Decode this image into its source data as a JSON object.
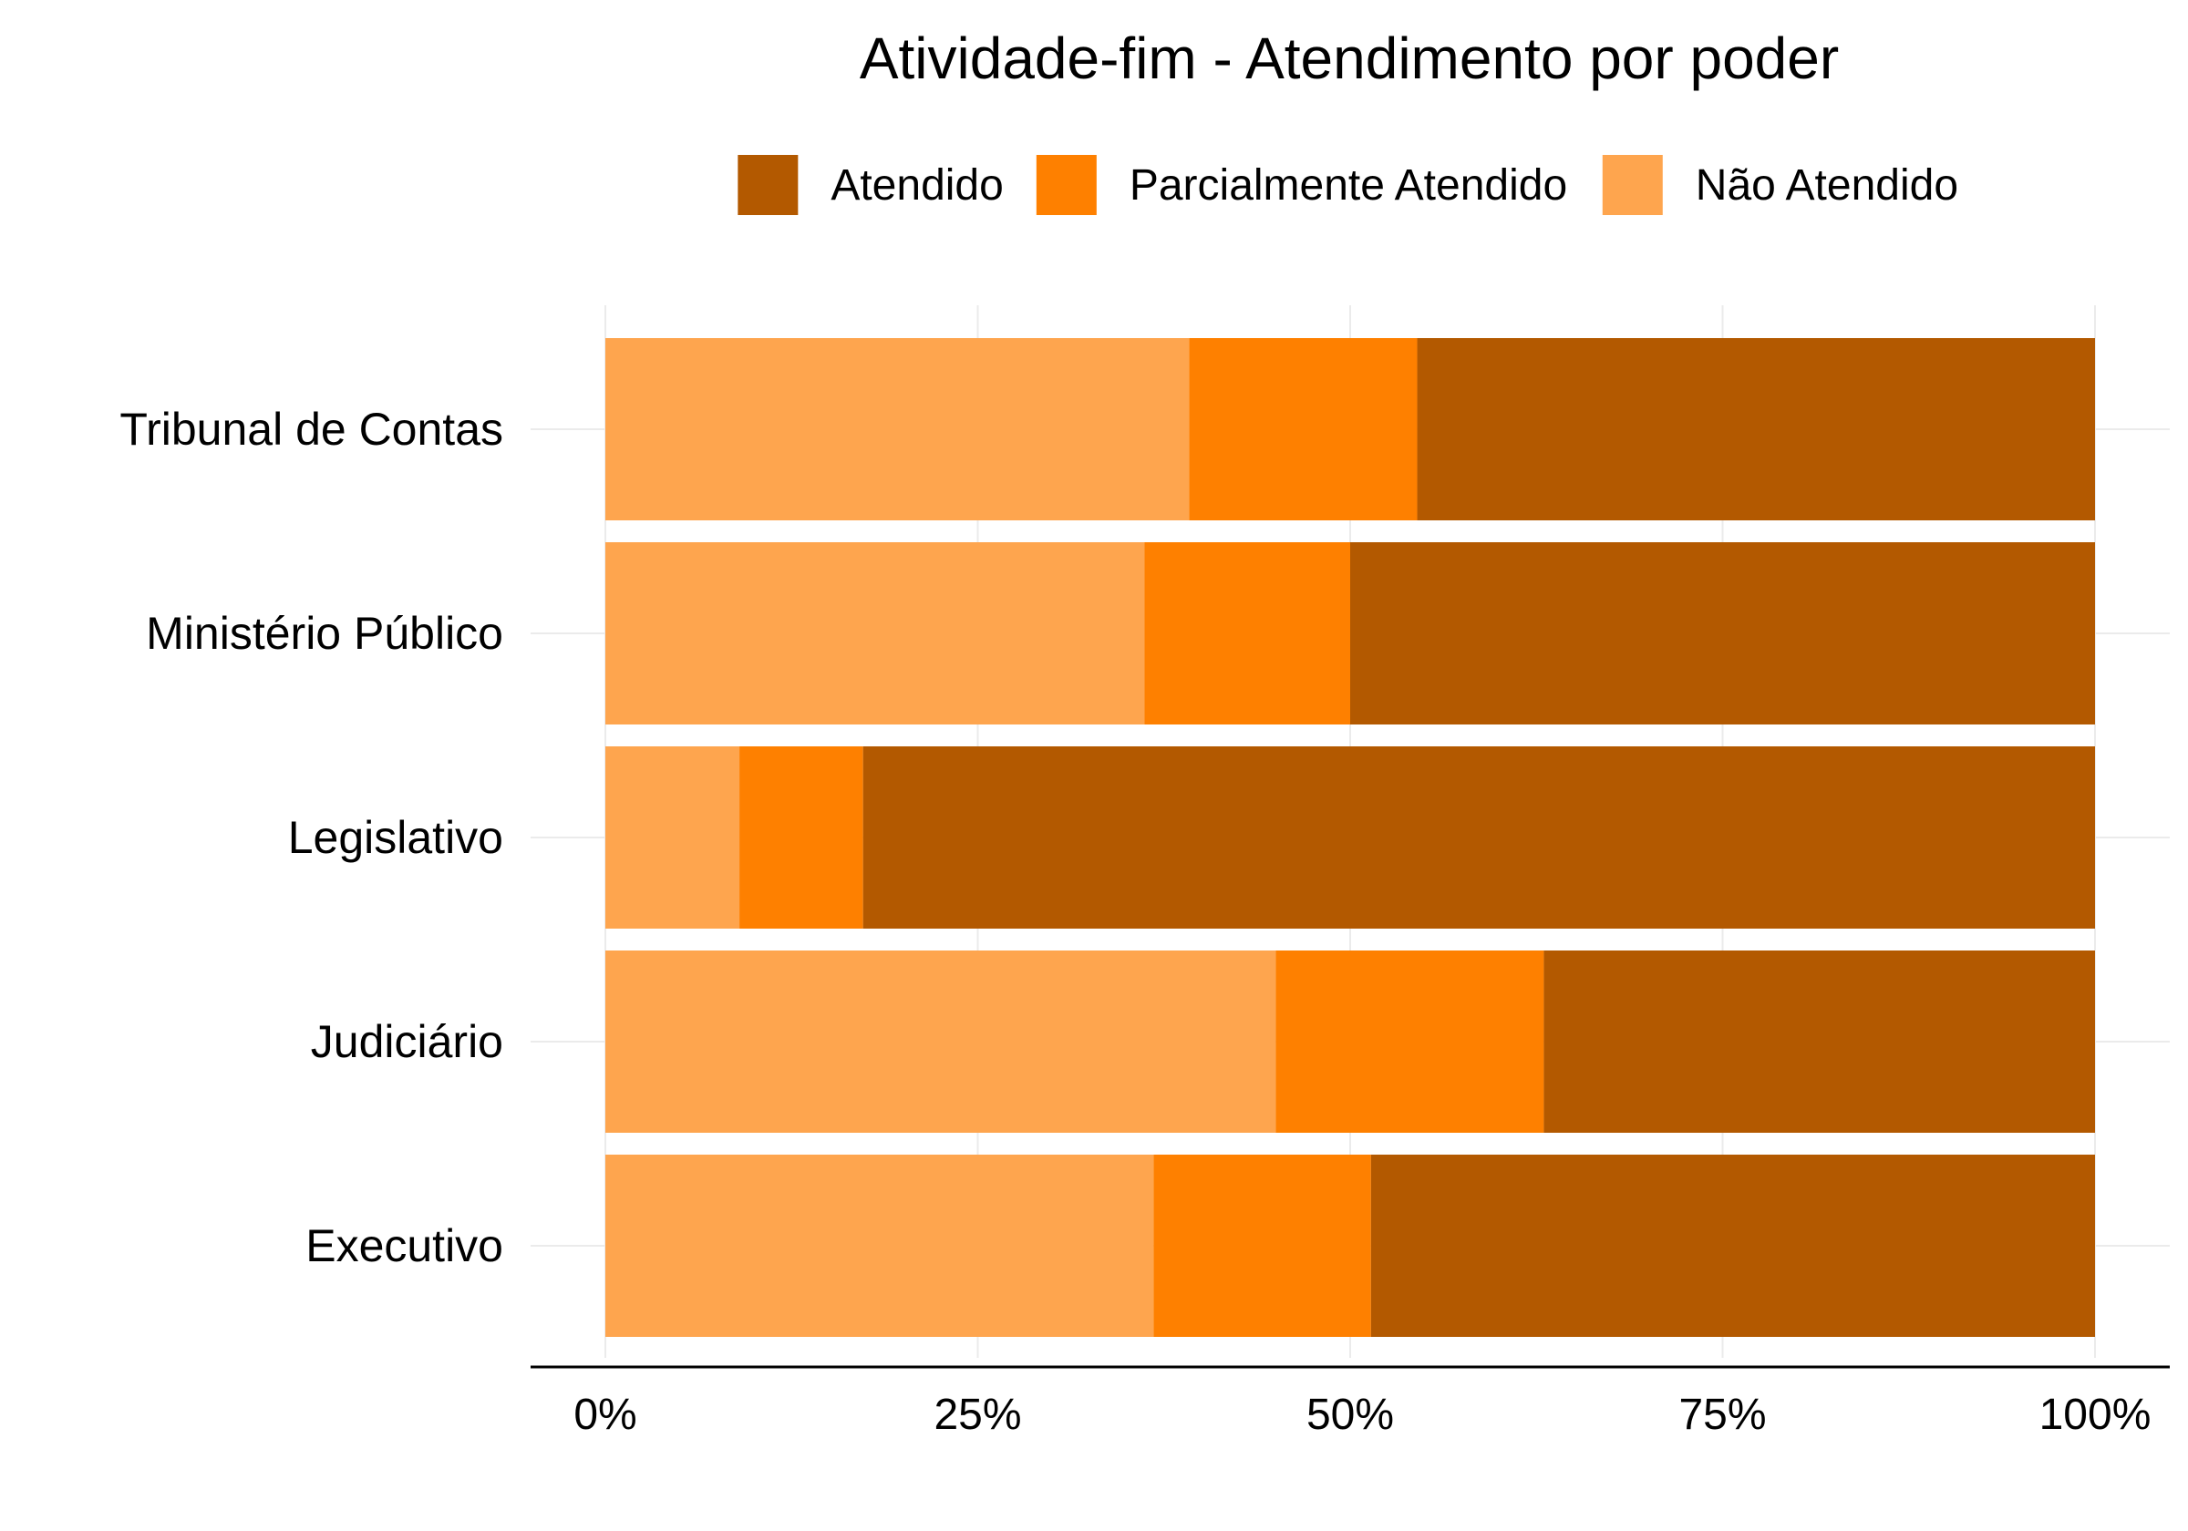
{
  "chart_data": {
    "type": "bar",
    "orientation": "horizontal",
    "stacked": "percent",
    "title": "Atividade-fim - Atendimento por poder",
    "xlabel": "",
    "ylabel": "",
    "xlim": [
      0,
      100
    ],
    "x_ticks": [
      "0%",
      "25%",
      "50%",
      "75%",
      "100%"
    ],
    "x_tick_values": [
      0,
      25,
      50,
      75,
      100
    ],
    "categories": [
      "Tribunal de Contas",
      "Ministério Público",
      "Legislativo",
      "Judiciário",
      "Executivo"
    ],
    "series": [
      {
        "name": "Não Atendido",
        "color": "#fea54e",
        "values": [
          39.2,
          36.2,
          9.0,
          45.0,
          36.8
        ]
      },
      {
        "name": "Parcialmente Atendido",
        "color": "#fe8000",
        "values": [
          15.3,
          13.8,
          8.3,
          18.0,
          14.6
        ]
      },
      {
        "name": "Atendido",
        "color": "#b35900",
        "values": [
          45.5,
          50.0,
          82.7,
          37.0,
          48.6
        ]
      }
    ],
    "legend": {
      "position": "top",
      "order": [
        "Atendido",
        "Parcialmente Atendido",
        "Não Atendido"
      ]
    },
    "grid": true
  }
}
